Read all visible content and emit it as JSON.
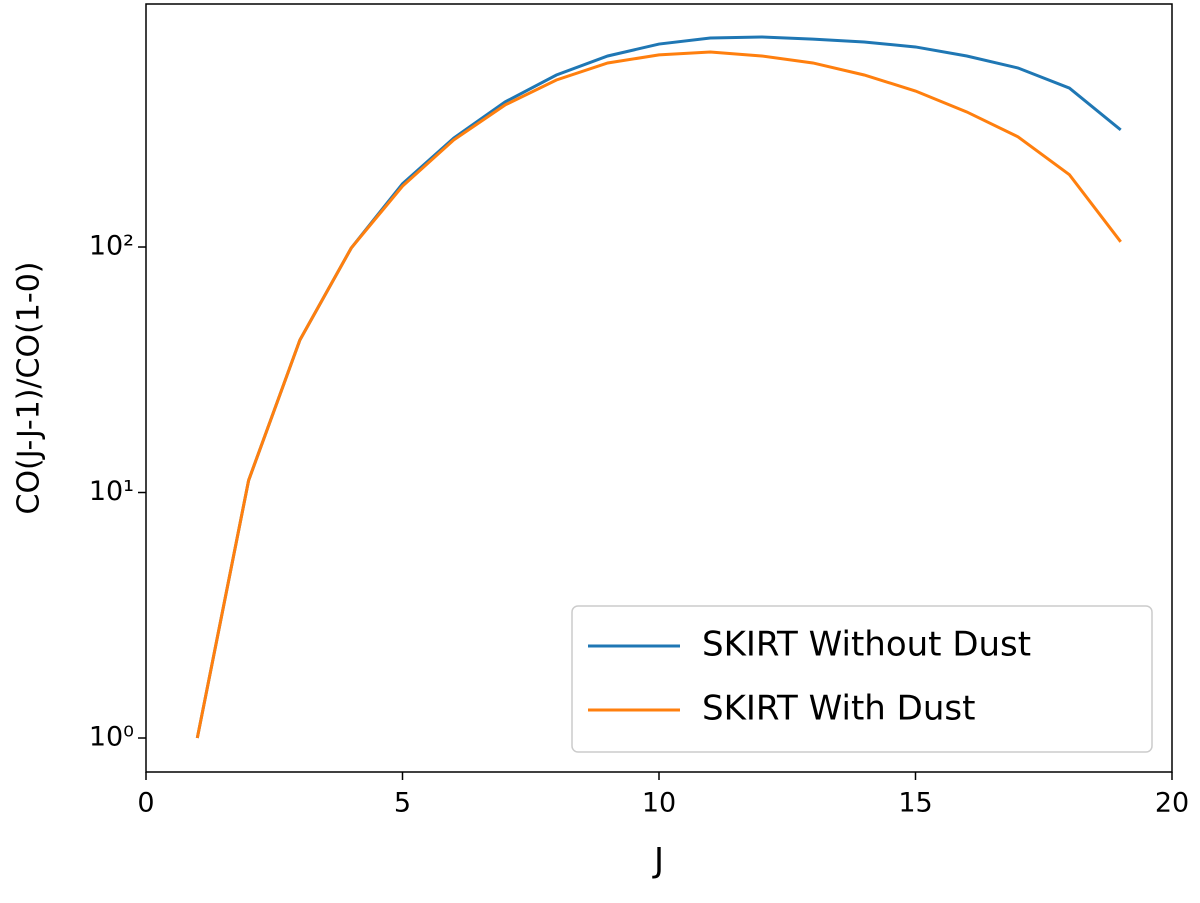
{
  "chart_data": {
    "type": "line",
    "x": [
      1,
      2,
      3,
      4,
      5,
      6,
      7,
      8,
      9,
      10,
      11,
      12,
      13,
      14,
      15,
      16,
      17,
      18,
      19
    ],
    "series": [
      {
        "name": "SKIRT Without Dust",
        "color": "#1f77b4",
        "values": [
          1,
          11.2,
          41.8,
          99,
          181,
          278,
          390,
          502,
          600,
          671,
          710,
          717,
          703,
          684,
          653,
          600,
          536,
          444,
          300
        ]
      },
      {
        "name": "SKIRT With Dust",
        "color": "#ff7f0e",
        "values": [
          1,
          11.2,
          41.8,
          99,
          177,
          273,
          379,
          479,
          562,
          606,
          623,
          600,
          562,
          502,
          432,
          355,
          281,
          197,
          105
        ]
      }
    ],
    "xlabel": "J",
    "ylabel": "CO(J-J-1)/CO(1-0)",
    "xlim": [
      0,
      20
    ],
    "xticks": [
      0,
      5,
      10,
      15,
      20
    ],
    "ylim": [
      0.727,
      977
    ],
    "yscale": "log",
    "yticks": [
      {
        "value": 1,
        "label": "10⁰"
      },
      {
        "value": 10,
        "label": "10¹"
      },
      {
        "value": 100,
        "label": "10²"
      }
    ],
    "legend": "lower right"
  }
}
